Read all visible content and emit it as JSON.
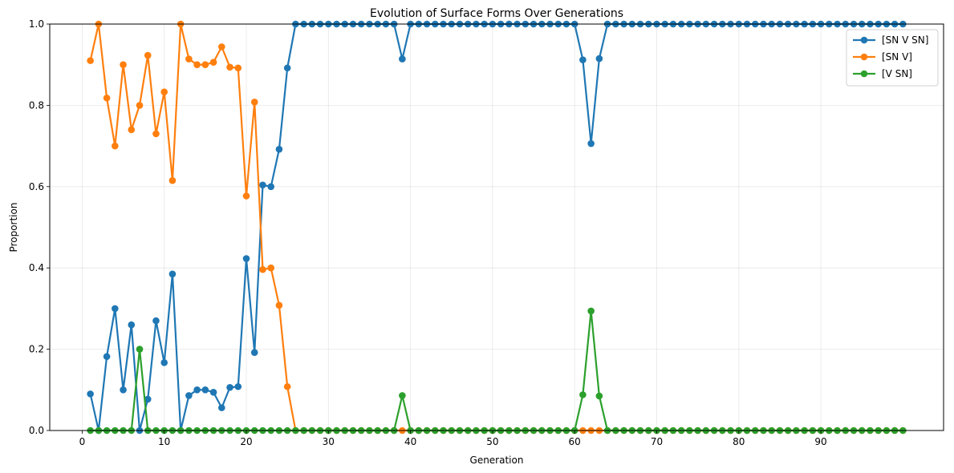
{
  "chart_data": {
    "type": "line",
    "title": "Evolution of Surface Forms Over Generations",
    "xlabel": "Generation",
    "ylabel": "Proportion",
    "xlim": [
      -3.95,
      104.95
    ],
    "ylim": [
      0,
      1
    ],
    "xticks": [
      0,
      10,
      20,
      30,
      40,
      50,
      60,
      70,
      80,
      90
    ],
    "yticks": [
      0.0,
      0.2,
      0.4,
      0.6,
      0.8,
      1.0
    ],
    "ytick_labels": [
      "0.0",
      "0.2",
      "0.4",
      "0.6",
      "0.8",
      "1.0"
    ],
    "grid": true,
    "legend_position": "top-right",
    "x_start": 1,
    "series": [
      {
        "name": "[SN V SN]",
        "color": "#1f77b4",
        "values": [
          0.09,
          0.0,
          0.182,
          0.3,
          0.1,
          0.26,
          0.0,
          0.077,
          0.27,
          0.167,
          0.385,
          0.0,
          0.086,
          0.1,
          0.1,
          0.094,
          0.056,
          0.106,
          0.108,
          0.423,
          0.192,
          0.604,
          0.6,
          0.692,
          0.892,
          1,
          1,
          1,
          1,
          1,
          1,
          1,
          1,
          1,
          1,
          1,
          1,
          1,
          0.914,
          1,
          1,
          1,
          1,
          1,
          1,
          1,
          1,
          1,
          1,
          1,
          1,
          1,
          1,
          1,
          1,
          1,
          1,
          1,
          1,
          1,
          0.912,
          0.706,
          0.915,
          1,
          1,
          1,
          1,
          1,
          1,
          1,
          1,
          1,
          1,
          1,
          1,
          1,
          1,
          1,
          1,
          1,
          1,
          1,
          1,
          1,
          1,
          1,
          1,
          1,
          1,
          1,
          1,
          1,
          1,
          1,
          1,
          1,
          1,
          1,
          1,
          1
        ]
      },
      {
        "name": "[SN V]",
        "color": "#ff7f0e",
        "values": [
          0.91,
          1.0,
          0.818,
          0.7,
          0.9,
          0.74,
          0.8,
          0.923,
          0.73,
          0.833,
          0.615,
          1.0,
          0.914,
          0.9,
          0.9,
          0.906,
          0.944,
          0.894,
          0.892,
          0.577,
          0.808,
          0.396,
          0.4,
          0.308,
          0.108,
          0,
          0,
          0,
          0,
          0,
          0,
          0,
          0,
          0,
          0,
          0,
          0,
          0,
          0,
          0,
          0,
          0,
          0,
          0,
          0,
          0,
          0,
          0,
          0,
          0,
          0,
          0,
          0,
          0,
          0,
          0,
          0,
          0,
          0,
          0,
          0,
          0,
          0,
          0,
          0,
          0,
          0,
          0,
          0,
          0,
          0,
          0,
          0,
          0,
          0,
          0,
          0,
          0,
          0,
          0,
          0,
          0,
          0,
          0,
          0,
          0,
          0,
          0,
          0,
          0,
          0,
          0,
          0,
          0,
          0,
          0,
          0,
          0,
          0,
          0
        ]
      },
      {
        "name": "[V SN]",
        "color": "#2ca02c",
        "values": [
          0,
          0,
          0,
          0,
          0,
          0,
          0.2,
          0,
          0,
          0,
          0,
          0,
          0,
          0,
          0,
          0,
          0,
          0,
          0,
          0,
          0,
          0,
          0,
          0,
          0,
          0,
          0,
          0,
          0,
          0,
          0,
          0,
          0,
          0,
          0,
          0,
          0,
          0,
          0.086,
          0,
          0,
          0,
          0,
          0,
          0,
          0,
          0,
          0,
          0,
          0,
          0,
          0,
          0,
          0,
          0,
          0,
          0,
          0,
          0,
          0,
          0.088,
          0.294,
          0.085,
          0,
          0,
          0,
          0,
          0,
          0,
          0,
          0,
          0,
          0,
          0,
          0,
          0,
          0,
          0,
          0,
          0,
          0,
          0,
          0,
          0,
          0,
          0,
          0,
          0,
          0,
          0,
          0,
          0,
          0,
          0,
          0,
          0,
          0,
          0,
          0,
          0
        ]
      }
    ]
  }
}
